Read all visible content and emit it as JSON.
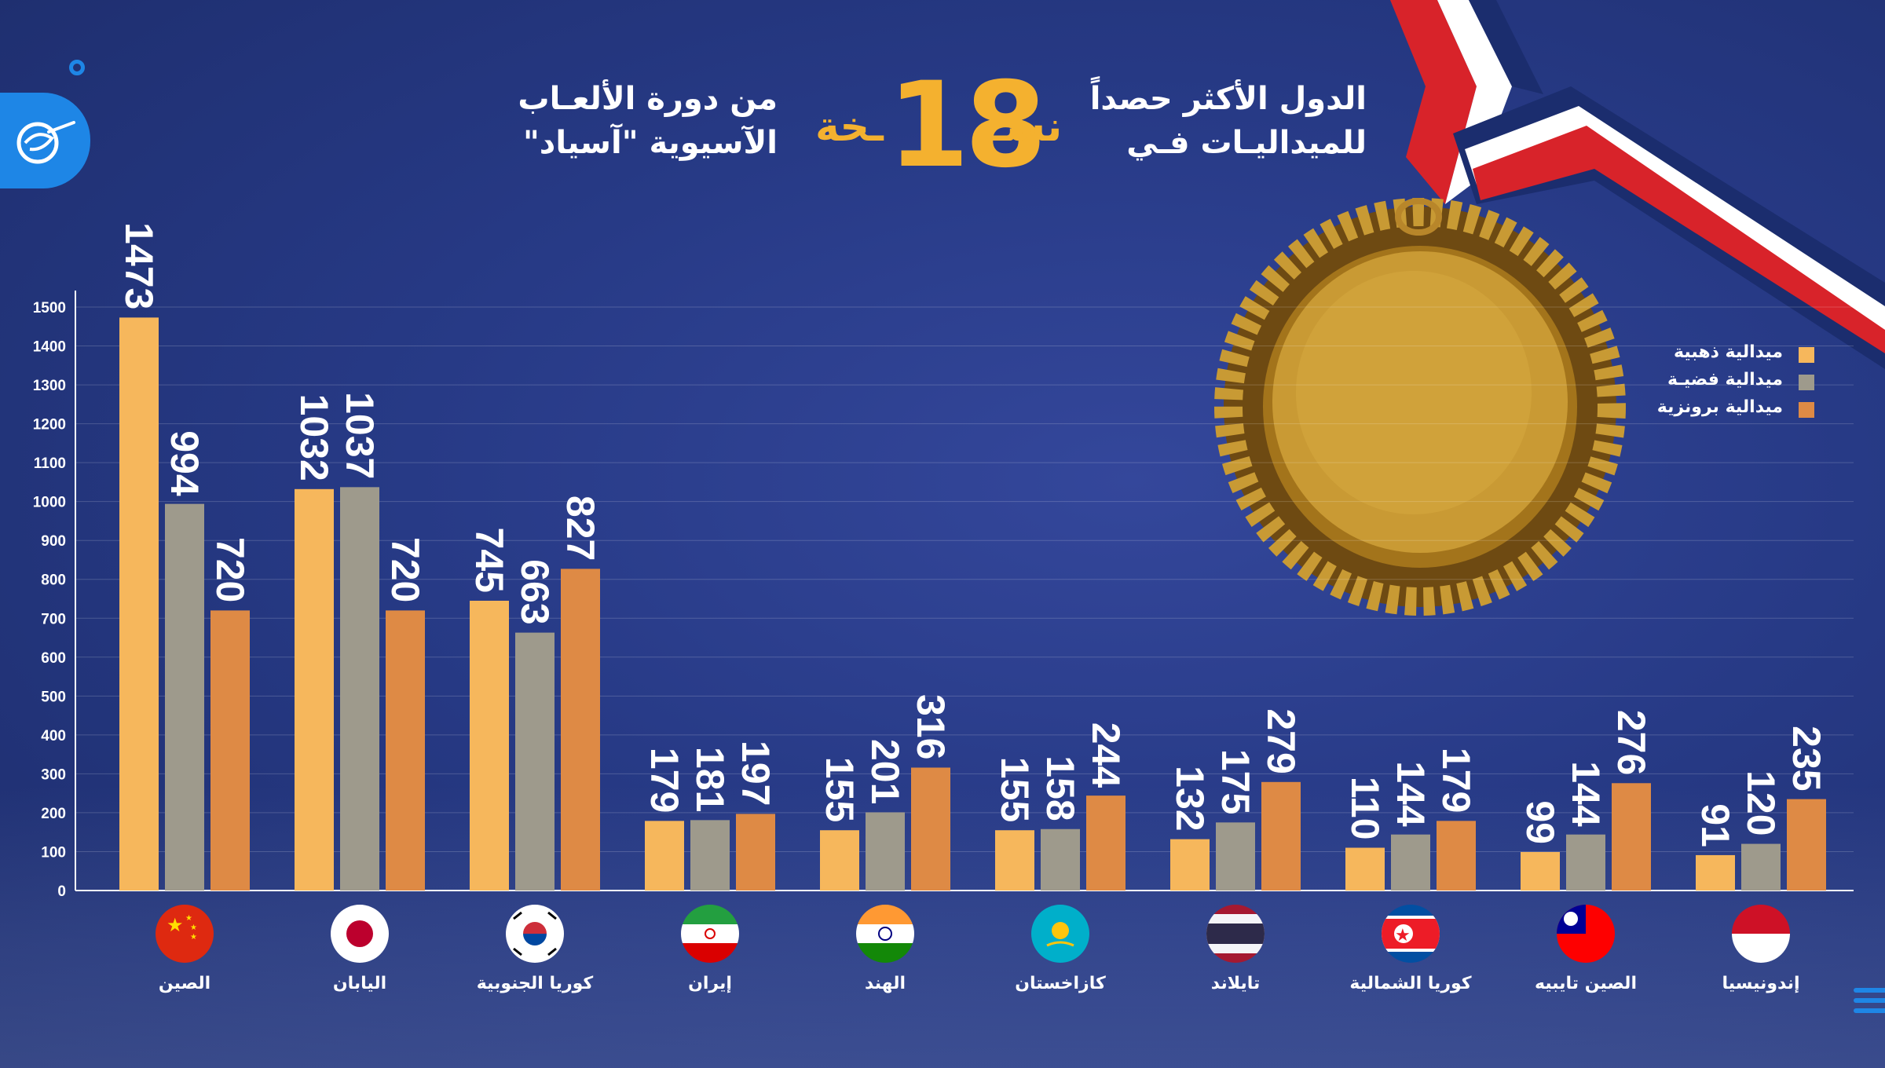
{
  "header": {
    "title_right_line1": "الدول الأكثر حصداً",
    "title_right_line2": "للميداليـات فـي",
    "edition_prefix": "نسـ",
    "edition_number": "18",
    "edition_suffix": "ـخة",
    "title_left_line1": "من دورة الألعـاب",
    "title_left_line2": "الآسيوية \"آسياد\""
  },
  "colors": {
    "gold": "#f6b75c",
    "silver": "#9e9a8c",
    "bronze": "#de8a45",
    "background": "#273a86",
    "accent": "#1e86e6",
    "title_accent": "#f4b12f"
  },
  "icons": {
    "logo": "al-mayadeen-logo",
    "medal": "gold-medal-illustration",
    "menu": "hamburger-menu-icon"
  },
  "chart_data": {
    "type": "bar",
    "categories": [
      "الصين",
      "اليابان",
      "كوريا الجنوبية",
      "إيران",
      "الهند",
      "كازاخستان",
      "تايلاند",
      "كوريا الشمالية",
      "الصين تايبيه",
      "إندونيسيا"
    ],
    "flags": [
      "china-flag",
      "japan-flag",
      "south-korea-flag",
      "iran-flag",
      "india-flag",
      "kazakhstan-flag",
      "thailand-flag",
      "north-korea-flag",
      "taiwan-flag",
      "indonesia-flag"
    ],
    "series": [
      {
        "name": "ميدالية ذهبية",
        "color": "#f6b75c",
        "values": [
          1473,
          1032,
          745,
          179,
          155,
          155,
          132,
          110,
          99,
          91
        ]
      },
      {
        "name": "ميدالية فضيـة",
        "color": "#9e9a8c",
        "values": [
          994,
          1037,
          663,
          181,
          201,
          158,
          175,
          144,
          144,
          120
        ]
      },
      {
        "name": "ميدالية برونزية",
        "color": "#de8a45",
        "values": [
          720,
          720,
          827,
          197,
          316,
          244,
          279,
          179,
          276,
          235
        ]
      }
    ],
    "yticks": [
      0,
      100,
      200,
      300,
      400,
      500,
      600,
      700,
      800,
      900,
      1000,
      1100,
      1200,
      1300,
      1400,
      1500
    ],
    "ylim": [
      0,
      1500
    ],
    "grid": true,
    "legend_position": "right"
  }
}
